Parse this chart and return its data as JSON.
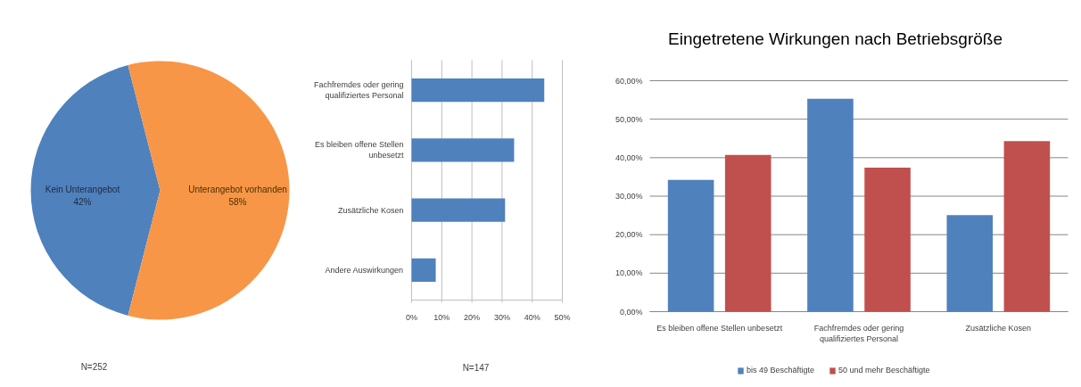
{
  "chart_data": [
    {
      "type": "pie",
      "categories": [
        "Kein Unterangebot",
        "Unterangebot vorhanden"
      ],
      "values": [
        42,
        58
      ],
      "colors": [
        "#4f81bd",
        "#f79646"
      ],
      "value_labels": [
        "42%",
        "58%"
      ],
      "annotations": [
        "N=252"
      ]
    },
    {
      "type": "bar",
      "orientation": "horizontal",
      "categories": [
        "Fachfremdes oder gering qualifiziertes Personal",
        "Es bleiben offene Stellen unbesetzt",
        "Zusätzliche Kosen",
        "Andere Auswirkungen"
      ],
      "values": [
        44,
        34,
        31,
        8
      ],
      "color": "#4f81bd",
      "xlim": [
        0,
        50
      ],
      "xticks": [
        {
          "value": 0,
          "label": "0%"
        },
        {
          "value": 10,
          "label": "10%"
        },
        {
          "value": 20,
          "label": "20%"
        },
        {
          "value": 30,
          "label": "30%"
        },
        {
          "value": 40,
          "label": "40%"
        },
        {
          "value": 50,
          "label": "50%"
        }
      ],
      "grid": "x",
      "annotations": [
        "N=147"
      ]
    },
    {
      "type": "bar",
      "title": "Eingetretene Wirkungen nach Betriebsgröße",
      "categories": [
        "Es bleiben offene Stellen unbesetzt",
        "Fachfremdes oder gering qualifiziertes Personal",
        "Zusätzliche Kosen"
      ],
      "series": [
        {
          "name": "bis 49 Beschäftigte",
          "color": "#4f81bd",
          "values": [
            34.2,
            55.3,
            25.1
          ]
        },
        {
          "name": "50 und mehr Beschäftigte",
          "color": "#c0504d",
          "values": [
            40.7,
            37.4,
            44.3
          ]
        }
      ],
      "ylim": [
        0,
        60
      ],
      "yticks": [
        {
          "value": 0,
          "label": "0,00%"
        },
        {
          "value": 10,
          "label": "10,00%"
        },
        {
          "value": 20,
          "label": "20,00%"
        },
        {
          "value": 30,
          "label": "30,00%"
        },
        {
          "value": 40,
          "label": "40,00%"
        },
        {
          "value": 50,
          "label": "50,00%"
        },
        {
          "value": 60,
          "label": "60,00%"
        }
      ],
      "grid": "y",
      "legend": "bottom"
    }
  ]
}
